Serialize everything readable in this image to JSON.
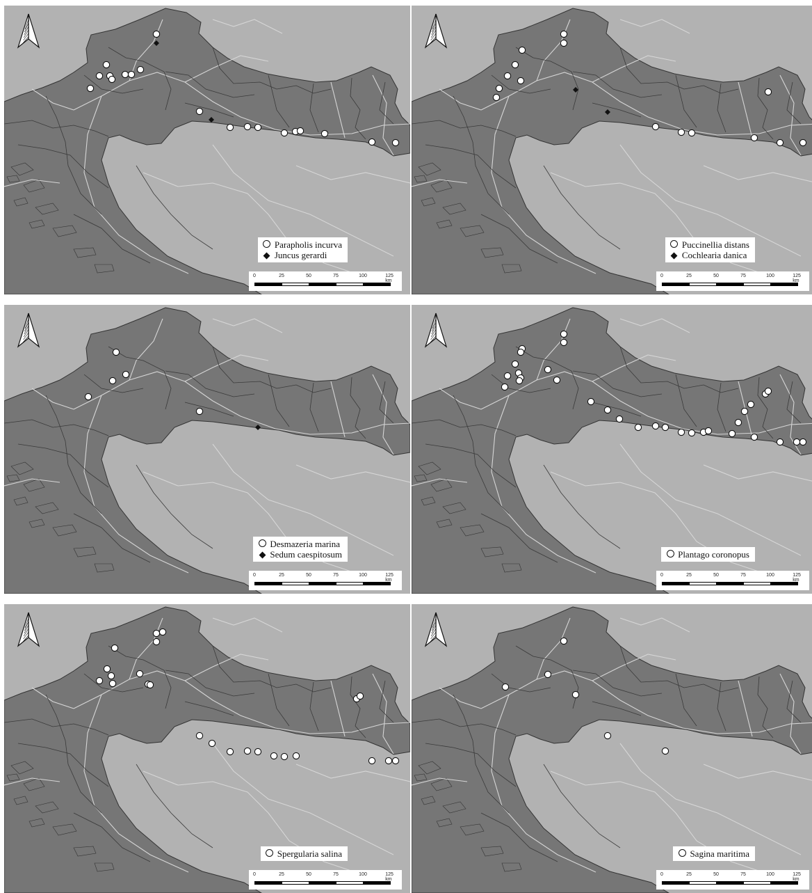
{
  "panels": [
    {
      "legend": [
        {
          "symbol": "circle",
          "label": "Parapholis incurva"
        },
        {
          "symbol": "diamond",
          "label": "Juncus gerardi"
        }
      ],
      "circles": [
        [
          225,
          49
        ],
        [
          153,
          93
        ],
        [
          143,
          109
        ],
        [
          158,
          109
        ],
        [
          161,
          114
        ],
        [
          180,
          107
        ],
        [
          189,
          107
        ],
        [
          202,
          100
        ],
        [
          130,
          127
        ],
        [
          287,
          160
        ],
        [
          331,
          183
        ],
        [
          356,
          182
        ],
        [
          371,
          183
        ],
        [
          409,
          191
        ],
        [
          425,
          189
        ],
        [
          432,
          188
        ],
        [
          467,
          192
        ],
        [
          535,
          204
        ],
        [
          569,
          205
        ]
      ],
      "diamonds": [
        [
          225,
          62
        ],
        [
          304,
          172
        ]
      ]
    },
    {
      "legend": [
        {
          "symbol": "circle",
          "label": "Puccinellia distans"
        },
        {
          "symbol": "diamond",
          "label": "Cochlearia danica"
        }
      ],
      "circles": [
        [
          811,
          49
        ],
        [
          811,
          62
        ],
        [
          751,
          72
        ],
        [
          741,
          93
        ],
        [
          730,
          109
        ],
        [
          749,
          116
        ],
        [
          718,
          127
        ],
        [
          714,
          140
        ],
        [
          1105,
          132
        ],
        [
          943,
          182
        ],
        [
          980,
          190
        ],
        [
          995,
          191
        ],
        [
          1085,
          198
        ],
        [
          1122,
          205
        ],
        [
          1155,
          205
        ]
      ],
      "diamonds": [
        [
          828,
          129
        ],
        [
          874,
          161
        ]
      ]
    },
    {
      "legend": [
        {
          "symbol": "circle",
          "label": "Desmazeria marina"
        },
        {
          "symbol": "diamond",
          "label": "Sedum caespitosum"
        }
      ],
      "circles": [
        [
          167,
          506
        ],
        [
          181,
          538
        ],
        [
          162,
          547
        ],
        [
          127,
          570
        ],
        [
          287,
          591
        ]
      ],
      "diamonds": [
        [
          371,
          614
        ]
      ]
    },
    {
      "legend": [
        {
          "symbol": "circle",
          "label": "Plantago coronopus"
        }
      ],
      "circles": [
        [
          811,
          480
        ],
        [
          811,
          492
        ],
        [
          751,
          501
        ],
        [
          749,
          506
        ],
        [
          741,
          523
        ],
        [
          746,
          536
        ],
        [
          749,
          543
        ],
        [
          747,
          547
        ],
        [
          730,
          540
        ],
        [
          726,
          556
        ],
        [
          788,
          531
        ],
        [
          801,
          546
        ],
        [
          850,
          577
        ],
        [
          874,
          589
        ],
        [
          891,
          602
        ],
        [
          918,
          614
        ],
        [
          943,
          612
        ],
        [
          957,
          614
        ],
        [
          980,
          621
        ],
        [
          995,
          622
        ],
        [
          1012,
          621
        ],
        [
          1019,
          619
        ],
        [
          1053,
          623
        ],
        [
          1085,
          628
        ],
        [
          1062,
          607
        ],
        [
          1071,
          591
        ],
        [
          1080,
          581
        ],
        [
          1101,
          566
        ],
        [
          1105,
          562
        ],
        [
          1122,
          635
        ],
        [
          1146,
          635
        ],
        [
          1155,
          635
        ]
      ],
      "diamonds": []
    },
    {
      "legend": [
        {
          "symbol": "circle",
          "label": "Spergularia salina"
        }
      ],
      "circles": [
        [
          225,
          910
        ],
        [
          234,
          908
        ],
        [
          225,
          922
        ],
        [
          165,
          931
        ],
        [
          154,
          961
        ],
        [
          143,
          978
        ],
        [
          160,
          971
        ],
        [
          162,
          982
        ],
        [
          201,
          968
        ],
        [
          213,
          983
        ],
        [
          216,
          984
        ],
        [
          287,
          1057
        ],
        [
          305,
          1068
        ],
        [
          331,
          1080
        ],
        [
          356,
          1079
        ],
        [
          371,
          1080
        ],
        [
          394,
          1086
        ],
        [
          409,
          1087
        ],
        [
          426,
          1086
        ],
        [
          513,
          1004
        ],
        [
          518,
          1000
        ],
        [
          535,
          1093
        ],
        [
          559,
          1093
        ],
        [
          569,
          1093
        ]
      ],
      "diamonds": []
    },
    {
      "legend": [
        {
          "symbol": "circle",
          "label": "Sagina maritima"
        }
      ],
      "circles": [
        [
          811,
          921
        ],
        [
          788,
          969
        ],
        [
          727,
          987
        ],
        [
          828,
          998
        ],
        [
          874,
          1057
        ],
        [
          957,
          1079
        ]
      ],
      "diamonds": []
    }
  ],
  "scalebar": {
    "ticks": [
      "0",
      "25",
      "50",
      "75",
      "100",
      "125 km"
    ]
  },
  "colors": {
    "country": "#767676",
    "background": "#b2b2b2",
    "sea": "#e6e6e6",
    "borders": "#3a3a3a",
    "roads": "#d6d6d6"
  }
}
